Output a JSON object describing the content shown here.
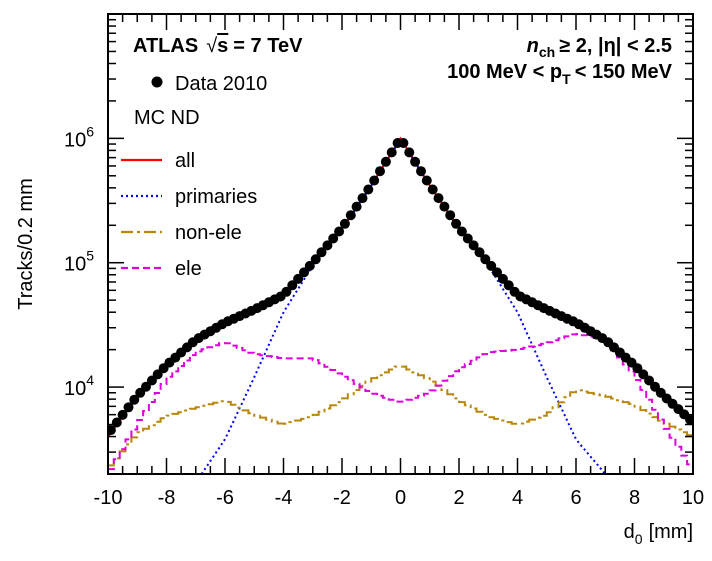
{
  "chart_data": {
    "type": "line",
    "ylabel": "Tracks/0.2 mm",
    "xlabel_main": "d",
    "xlabel_sub": "0",
    "xlabel_unit": "[mm]",
    "xlim": [
      -10,
      10
    ],
    "ylim": [
      2000,
      10000000
    ],
    "yscale": "log",
    "x_ticks": [
      "-10",
      "-8",
      "-6",
      "-4",
      "-2",
      "0",
      "2",
      "4",
      "6",
      "8",
      "10"
    ],
    "y_ticks": [
      {
        "base": "10",
        "exp": "4",
        "value": 10000
      },
      {
        "base": "10",
        "exp": "5",
        "value": 100000
      },
      {
        "base": "10",
        "exp": "6",
        "value": 1000000
      }
    ],
    "annotations": {
      "experiment": "ATLAS",
      "energy_sqrt": "s",
      "energy_value": "= 7 TeV",
      "selection_n": "n",
      "selection_n_sub": "ch",
      "selection_rest": "≥ 2, |η| < 2.5",
      "pt_left": "100 MeV < p",
      "pt_sub": "T",
      "pt_right": "< 150 MeV"
    },
    "legend": {
      "data_label": "Data 2010",
      "mc_header": "MC ND",
      "entries": [
        {
          "label": "all",
          "color": "#ff0000",
          "style": "solid"
        },
        {
          "label": "primaries",
          "color": "#0000ff",
          "style": "dotted"
        },
        {
          "label": "non-ele",
          "color": "#b8860b",
          "style": "dashdot"
        },
        {
          "label": "ele",
          "color": "#dd00dd",
          "style": "dashed"
        }
      ]
    },
    "series": [
      {
        "name": "Data 2010",
        "kind": "points",
        "x": [
          -10,
          -9,
          -8,
          -7,
          -6,
          -5,
          -4,
          -3,
          -2,
          -1,
          0,
          1,
          2,
          3,
          4,
          5,
          6,
          7,
          8,
          9,
          10
        ],
        "y": [
          4200,
          8500,
          15000,
          24000,
          33000,
          42000,
          55000,
          100000,
          190000,
          420000,
          1000000,
          420000,
          190000,
          100000,
          55000,
          42000,
          33000,
          24000,
          15000,
          8500,
          5200
        ]
      },
      {
        "name": "all",
        "kind": "line",
        "x": [
          -10,
          -9,
          -8,
          -7,
          -6,
          -5,
          -4,
          -3,
          -2,
          -1,
          0,
          1,
          2,
          3,
          4,
          5,
          6,
          7,
          8,
          9,
          10
        ],
        "y": [
          4000,
          8300,
          14800,
          23800,
          32800,
          41800,
          54800,
          99000,
          188000,
          418000,
          1000000,
          418000,
          188000,
          99000,
          54800,
          41800,
          33000,
          24000,
          15000,
          8300,
          5000
        ]
      },
      {
        "name": "primaries",
        "kind": "line",
        "x": [
          -6.8,
          -6,
          -5,
          -4,
          -3,
          -2,
          -1,
          0,
          1,
          2,
          3,
          4,
          5,
          6,
          7
        ],
        "y": [
          2000,
          3800,
          12000,
          40000,
          95000,
          185000,
          415000,
          980000,
          415000,
          185000,
          95000,
          40000,
          12000,
          3800,
          2000
        ]
      },
      {
        "name": "non-ele",
        "kind": "step",
        "x": [
          -10,
          -9,
          -8,
          -7,
          -6,
          -5,
          -4,
          -3,
          -2,
          -1,
          0,
          1,
          2,
          3,
          4,
          5,
          6,
          7,
          8,
          9,
          10
        ],
        "y": [
          2200,
          4200,
          5800,
          6800,
          7800,
          6000,
          5000,
          5800,
          7800,
          11500,
          15000,
          11500,
          7800,
          5800,
          5000,
          6000,
          9500,
          8500,
          7200,
          5200,
          4000
        ]
      },
      {
        "name": "ele",
        "kind": "step",
        "x": [
          -10,
          -9,
          -8,
          -7,
          -6,
          -5,
          -4,
          -3,
          -2,
          -1,
          0,
          1,
          2,
          3,
          4,
          5,
          6,
          7,
          8,
          9,
          10
        ],
        "y": [
          2000,
          5000,
          11500,
          19000,
          23000,
          18500,
          17000,
          17000,
          12500,
          9000,
          7500,
          9000,
          14000,
          19000,
          20000,
          22500,
          27000,
          24000,
          12500,
          5000,
          2200
        ]
      }
    ]
  }
}
